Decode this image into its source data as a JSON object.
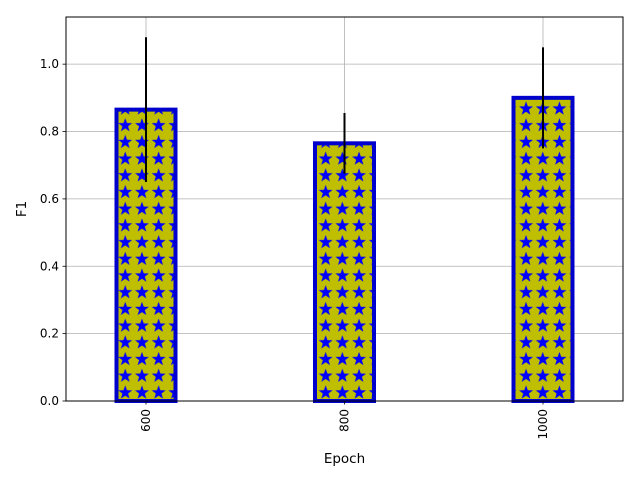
{
  "chart_data": {
    "type": "bar",
    "title": "",
    "xlabel": "Epoch",
    "ylabel": "F1",
    "categories": [
      "600",
      "800",
      "1000"
    ],
    "series": [
      {
        "values": [
          0.865,
          0.765,
          0.9
        ],
        "error": [
          0.215,
          0.09,
          0.15
        ]
      }
    ],
    "ylim": [
      0.0,
      1.14
    ],
    "yticks": [
      0.0,
      0.2,
      0.4,
      0.6,
      0.8,
      1.0
    ],
    "ytick_labels": [
      "0.0",
      "0.2",
      "0.4",
      "0.6",
      "0.8",
      "1.0"
    ],
    "grid": true,
    "x_tick_rotation": "vertical",
    "colors": {
      "bar_fill": "#bfbf00",
      "bar_edge": "#0000cc",
      "hatch": "#0000ff",
      "error_bar": "#000000",
      "grid": "#b0b0b0"
    }
  }
}
